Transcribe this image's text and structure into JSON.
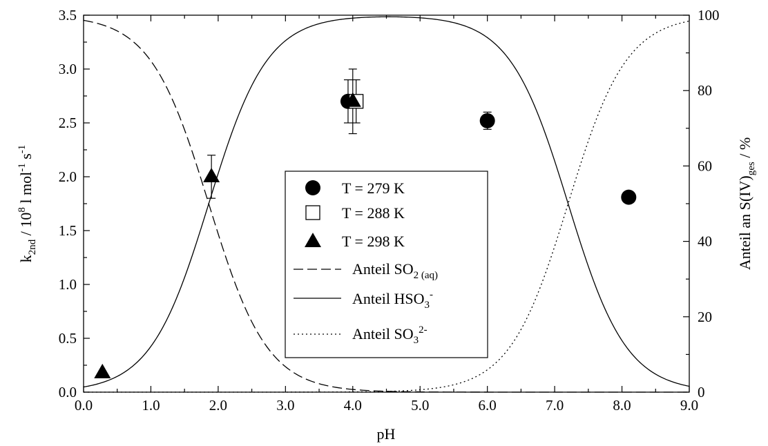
{
  "chart_data": {
    "type": "scatter",
    "xlabel": "pH",
    "ylabel_left": {
      "base": "k",
      "sub": "2nd",
      "rest": " / 10",
      "sup1": "8",
      "rest2": " l mol",
      "sup2": "-1",
      "rest3": " s",
      "sup3": "-1"
    },
    "ylabel_right": {
      "base": "Anteil an S(IV)",
      "sub": "ges",
      "rest": " / %"
    },
    "xlim": [
      0,
      9
    ],
    "ylim_left": [
      0,
      3.5
    ],
    "ylim_right": [
      0,
      100
    ],
    "x_ticks": [
      "0.0",
      "1.0",
      "2.0",
      "3.0",
      "4.0",
      "5.0",
      "6.0",
      "7.0",
      "8.0",
      "9.0"
    ],
    "y_left_ticks": [
      "0.0",
      "0.5",
      "1.0",
      "1.5",
      "2.0",
      "2.5",
      "3.0",
      "3.5"
    ],
    "y_right_ticks": [
      "0",
      "20",
      "40",
      "60",
      "80",
      "100"
    ],
    "grid": false,
    "legend_position": "center",
    "series": [
      {
        "name": "T = 279 K",
        "marker": "circle-filled",
        "axis": "left",
        "points": [
          {
            "x": 3.93,
            "y": 2.7,
            "err": 0.2
          },
          {
            "x": 6.0,
            "y": 2.52,
            "err": 0.08
          },
          {
            "x": 8.1,
            "y": 1.81,
            "err": 0
          }
        ]
      },
      {
        "name": "T = 288 K",
        "marker": "square-open",
        "axis": "left",
        "points": [
          {
            "x": 4.05,
            "y": 2.7,
            "err": 0.2
          }
        ]
      },
      {
        "name": "T = 298 K",
        "marker": "triangle-filled",
        "axis": "left",
        "points": [
          {
            "x": 0.28,
            "y": 0.18,
            "err": 0
          },
          {
            "x": 1.9,
            "y": 2.0,
            "err": 0.2
          },
          {
            "x": 4.0,
            "y": 2.7,
            "err": 0.3
          }
        ]
      }
    ],
    "curves": [
      {
        "name": "Anteil SO2 (aq)",
        "label": {
          "pre": "Anteil SO",
          "sub": "2 (aq)",
          "sup": ""
        },
        "style": "dashed",
        "axis": "right",
        "pKa1": 1.86,
        "pKa2": 7.2,
        "species": "H2SO3"
      },
      {
        "name": "Anteil HSO3-",
        "label": {
          "pre": "Anteil HSO",
          "sub": "3",
          "sup": "-"
        },
        "style": "solid",
        "axis": "right",
        "pKa1": 1.86,
        "pKa2": 7.2,
        "species": "HSO3"
      },
      {
        "name": "Anteil SO3 2-",
        "label": {
          "pre": "Anteil SO",
          "sub": "3",
          "sup": "2-"
        },
        "style": "dotted",
        "axis": "right",
        "pKa1": 1.86,
        "pKa2": 7.2,
        "species": "SO3"
      }
    ]
  }
}
